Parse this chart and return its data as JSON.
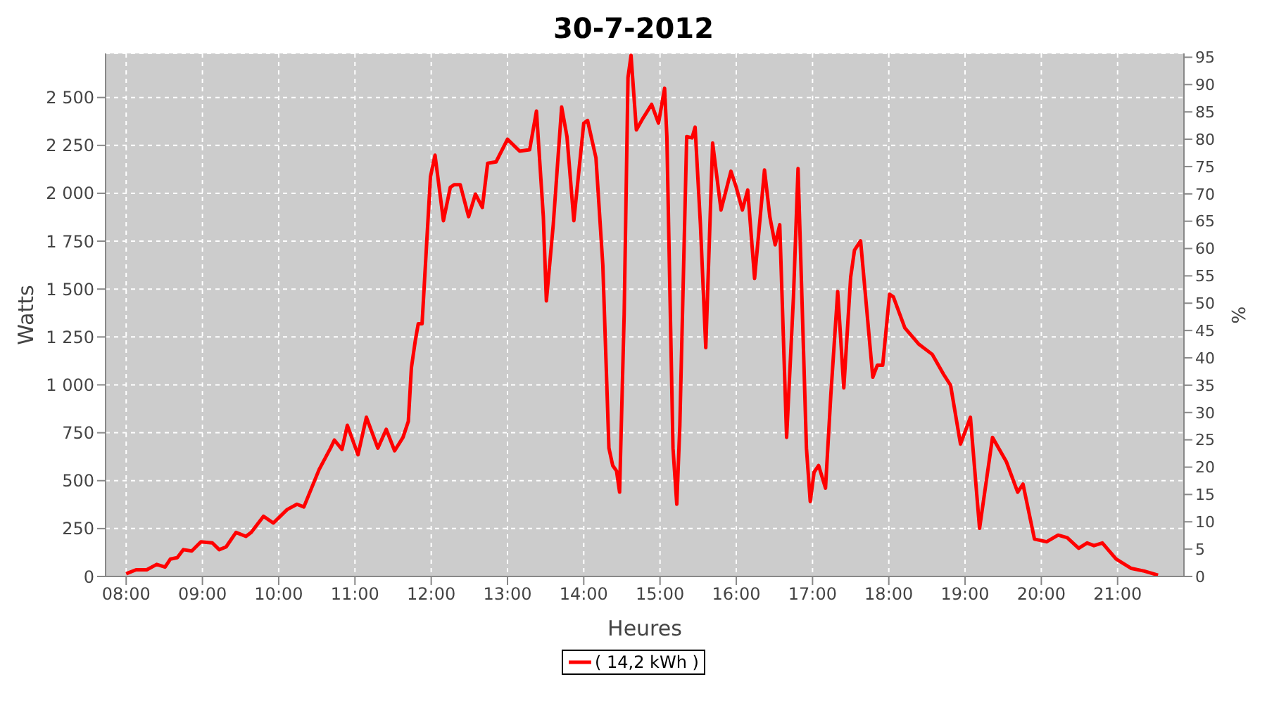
{
  "chart_data": {
    "type": "line",
    "title": "30-7-2012",
    "xlabel": "Heures",
    "ylabel": "Watts",
    "y2label": "%",
    "series": [
      {
        "name": "( 14,2 kWh )",
        "color": "#ff0000",
        "x": [
          8.0,
          8.13,
          8.27,
          8.4,
          8.51,
          8.58,
          8.67,
          8.75,
          8.86,
          8.98,
          9.13,
          9.22,
          9.31,
          9.44,
          9.57,
          9.64,
          9.8,
          9.93,
          10.11,
          10.24,
          10.33,
          10.53,
          10.68,
          10.73,
          10.83,
          10.9,
          11.04,
          11.15,
          11.3,
          11.41,
          11.52,
          11.63,
          11.7,
          11.74,
          11.79,
          11.83,
          11.88,
          11.99,
          12.05,
          12.16,
          12.25,
          12.3,
          12.38,
          12.49,
          12.58,
          12.67,
          12.74,
          12.85,
          13.0,
          13.16,
          13.29,
          13.38,
          13.47,
          13.51,
          13.6,
          13.71,
          13.78,
          13.87,
          14.0,
          14.05,
          14.16,
          14.25,
          14.33,
          14.38,
          14.43,
          14.47,
          14.53,
          14.58,
          14.62,
          14.69,
          14.78,
          14.89,
          14.98,
          15.06,
          15.09,
          15.17,
          15.22,
          15.26,
          15.35,
          15.42,
          15.46,
          15.53,
          15.6,
          15.69,
          15.8,
          15.93,
          16.0,
          16.08,
          16.15,
          16.24,
          16.37,
          16.44,
          16.51,
          16.57,
          16.66,
          16.75,
          16.81,
          16.92,
          16.97,
          17.02,
          17.08,
          17.17,
          17.24,
          17.33,
          17.41,
          17.5,
          17.55,
          17.63,
          17.79,
          17.85,
          17.92,
          18.01,
          18.06,
          18.21,
          18.39,
          18.57,
          18.72,
          18.81,
          18.94,
          19.07,
          19.19,
          19.36,
          19.54,
          19.69,
          19.76,
          19.91,
          20.07,
          20.22,
          20.34,
          20.49,
          20.6,
          20.69,
          20.8,
          20.98,
          21.18,
          21.35,
          21.53
        ],
        "values": [
          14,
          35,
          35,
          63,
          49,
          91,
          98,
          140,
          133,
          181,
          175,
          140,
          154,
          230,
          209,
          230,
          314,
          279,
          349,
          377,
          363,
          558,
          670,
          712,
          663,
          789,
          635,
          831,
          670,
          768,
          656,
          726,
          810,
          1089,
          1228,
          1319,
          1319,
          2087,
          2199,
          1857,
          2031,
          2045,
          2045,
          1878,
          1996,
          1926,
          2157,
          2164,
          2282,
          2220,
          2227,
          2429,
          1878,
          1438,
          1836,
          2450,
          2296,
          1857,
          2366,
          2380,
          2185,
          1626,
          670,
          579,
          551,
          440,
          1368,
          2604,
          2720,
          2331,
          2394,
          2464,
          2366,
          2548,
          2296,
          670,
          377,
          789,
          2296,
          2289,
          2345,
          1836,
          1194,
          2262,
          1913,
          2115,
          2031,
          1913,
          2017,
          1556,
          2122,
          1878,
          1731,
          1836,
          726,
          1459,
          2129,
          670,
          391,
          544,
          579,
          461,
          949,
          1487,
          984,
          1563,
          1703,
          1752,
          1040,
          1103,
          1103,
          1473,
          1459,
          1298,
          1214,
          1159,
          1054,
          998,
          691,
          831,
          251,
          726,
          600,
          440,
          482,
          195,
          181,
          216,
          202,
          147,
          175,
          161,
          175,
          91,
          42,
          28,
          7
        ]
      }
    ],
    "xlim": [
      7.73,
      21.87
    ],
    "xticks": [
      {
        "value": 8,
        "label": "08:00"
      },
      {
        "value": 9,
        "label": "09:00"
      },
      {
        "value": 10,
        "label": "10:00"
      },
      {
        "value": 11,
        "label": "11:00"
      },
      {
        "value": 12,
        "label": "12:00"
      },
      {
        "value": 13,
        "label": "13:00"
      },
      {
        "value": 14,
        "label": "14:00"
      },
      {
        "value": 15,
        "label": "15:00"
      },
      {
        "value": 16,
        "label": "16:00"
      },
      {
        "value": 17,
        "label": "17:00"
      },
      {
        "value": 18,
        "label": "18:00"
      },
      {
        "value": 19,
        "label": "19:00"
      },
      {
        "value": 20,
        "label": "20:00"
      },
      {
        "value": 21,
        "label": "21:00"
      }
    ],
    "ylim": [
      0,
      2730
    ],
    "yticks": [
      0,
      250,
      500,
      750,
      {
        "value": 1000,
        "label": "1 000"
      },
      {
        "value": 1250,
        "label": "1 250"
      },
      {
        "value": 1500,
        "label": "1 500"
      },
      {
        "value": 1750,
        "label": "1 750"
      },
      {
        "value": 2000,
        "label": "2 000"
      },
      {
        "value": 2250,
        "label": "2 250"
      },
      {
        "value": 2500,
        "label": "2 500"
      }
    ],
    "y2lim": [
      0,
      95.7
    ],
    "y2ticks": [
      0,
      5,
      10,
      15,
      20,
      25,
      30,
      35,
      40,
      45,
      50,
      55,
      60,
      65,
      70,
      75,
      80,
      85,
      90,
      95
    ],
    "grid": true,
    "legend": "bottom",
    "marker": "none",
    "line_style": "solid"
  }
}
